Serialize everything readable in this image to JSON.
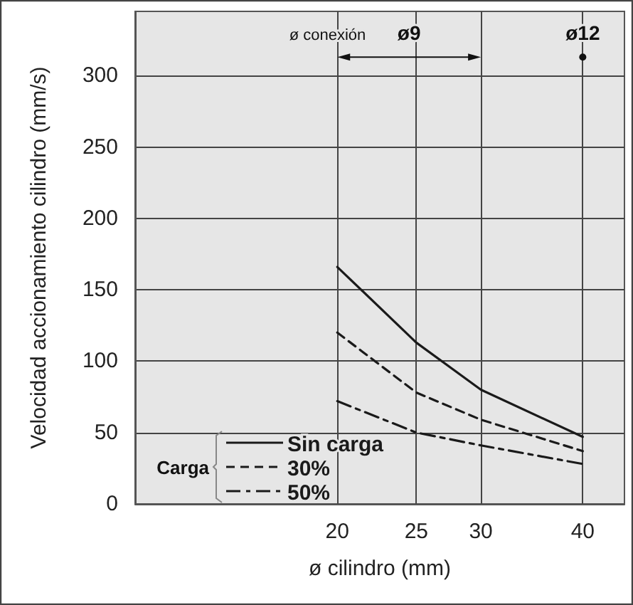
{
  "chart_data": {
    "type": "line",
    "xlabel": "ø cilindro (mm)",
    "ylabel": "Velocidad accionamiento cilindro (mm/s)",
    "legend_title": "Carga",
    "log": "x",
    "x": [
      20,
      25,
      30,
      40
    ],
    "xlim": [
      11.3,
      45
    ],
    "xticks": [
      20,
      25,
      30,
      40
    ],
    "ylim": [
      0,
      345
    ],
    "yticks": [
      0,
      50,
      100,
      150,
      200,
      250,
      300
    ],
    "grid": true,
    "legend": "bottom left",
    "marker": "none",
    "series": [
      {
        "name": "Sin carga",
        "color": "#1a1a1a",
        "line_style": "solid",
        "values": [
          166,
          113,
          80,
          47
        ]
      },
      {
        "name": "30%",
        "color": "#1a1a1a",
        "line_style": "dashed",
        "values": [
          120,
          78,
          59,
          37
        ]
      },
      {
        "name": "50%",
        "color": "#1a1a1a",
        "line_style": "dashdot",
        "values": [
          72,
          50,
          41,
          28
        ]
      }
    ],
    "annotations": [
      "ø conexión",
      "ø9",
      {
        "text": "ø12",
        "x": 40,
        "y": 313
      }
    ]
  }
}
